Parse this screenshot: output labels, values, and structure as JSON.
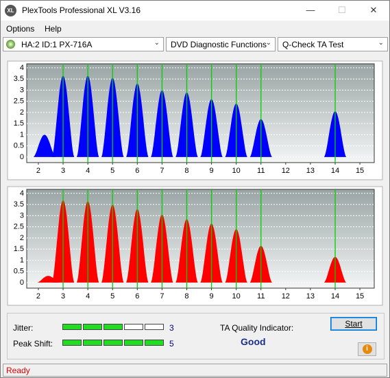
{
  "window": {
    "title": "PlexTools Professional XL V3.16",
    "icon": "XL"
  },
  "menu": [
    "Options",
    "Help"
  ],
  "toolbar": {
    "drive": "HA:2 ID:1  PX-716A",
    "function": "DVD Diagnostic Functions",
    "test": "Q-Check TA Test"
  },
  "chart_data": [
    {
      "type": "bar",
      "xlim": [
        1.53,
        15.58
      ],
      "ylim": [
        -0.25,
        4.18
      ],
      "xticks": [
        2,
        3,
        4,
        5,
        6,
        7,
        8,
        9,
        10,
        11,
        12,
        13,
        14,
        15
      ],
      "yticks": [
        0,
        0.5,
        1,
        1.5,
        2,
        2.5,
        3,
        3.5,
        4
      ],
      "grid": true,
      "markers": {
        "color": "#00d000",
        "x": [
          3,
          4,
          5,
          6,
          7,
          8,
          9,
          10,
          11,
          14
        ]
      },
      "series": [
        {
          "color": "#0000ff",
          "x": [
            2.25,
            3,
            4,
            5,
            6,
            7,
            8,
            9,
            10,
            11,
            14
          ],
          "values": [
            1.0,
            3.65,
            3.65,
            3.55,
            3.3,
            3.0,
            2.9,
            2.6,
            2.4,
            1.7,
            2.05
          ]
        }
      ]
    },
    {
      "type": "bar",
      "xlim": [
        1.53,
        15.58
      ],
      "ylim": [
        -0.25,
        4.18
      ],
      "xticks": [
        2,
        3,
        4,
        5,
        6,
        7,
        8,
        9,
        10,
        11,
        12,
        13,
        14,
        15
      ],
      "yticks": [
        0,
        0.5,
        1,
        1.5,
        2,
        2.5,
        3,
        3.5,
        4
      ],
      "grid": true,
      "markers": {
        "color": "#00d000",
        "x": [
          3,
          4,
          5,
          6,
          7,
          8,
          9,
          10,
          11,
          14
        ]
      },
      "series": [
        {
          "color": "#ff0000",
          "x": [
            2.4,
            3,
            4,
            5,
            6,
            7,
            8,
            9,
            10,
            11,
            14
          ],
          "values": [
            0.3,
            3.7,
            3.65,
            3.5,
            3.3,
            3.05,
            2.85,
            2.65,
            2.4,
            1.65,
            1.15
          ]
        }
      ]
    }
  ],
  "indicators": {
    "jitter": {
      "label": "Jitter:",
      "value": 3
    },
    "peak_shift": {
      "label": "Peak Shift:",
      "value": 5
    }
  },
  "quality": {
    "label": "TA Quality Indicator:",
    "value": "Good"
  },
  "buttons": {
    "start": "Start"
  },
  "status": "Ready"
}
